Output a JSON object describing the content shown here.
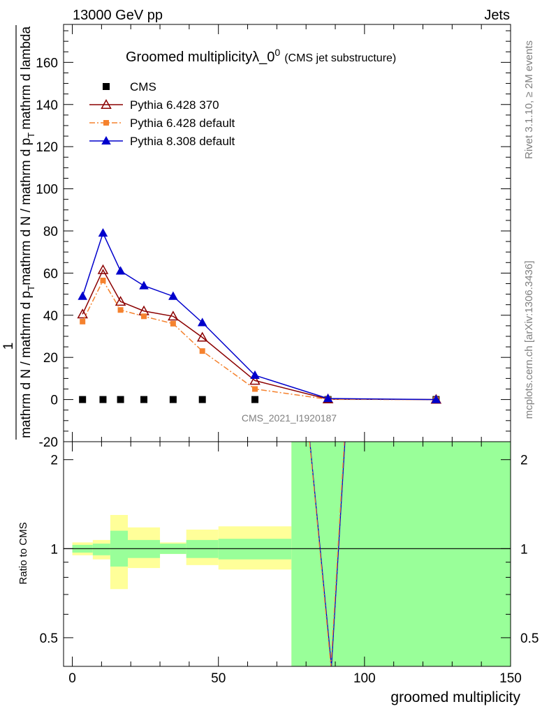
{
  "header": {
    "energy_label": "13000 GeV pp",
    "category_label": "Jets",
    "right_top": "Rivet 3.1.10, ≥ 2M events",
    "right_bottom": "mcplots.cern.ch [arXiv:1306.3436]",
    "watermark": "CMS_2021_I1920187"
  },
  "colors": {
    "data": "#000000",
    "pythia6_370": "#8b0000",
    "pythia6_default": "#f5822e",
    "pythia8": "#0000cc",
    "band_inner": "#99ff99",
    "band_outer": "#ffff99"
  },
  "chart_data": [
    {
      "type": "line",
      "title": "Groomed multiplicityλ_0",
      "title_superscript": "0",
      "title_suffix": "(CMS jet substructure)",
      "ylabel_num": "1",
      "ylabel_den": "mathrm d N / mathrm d p",
      "ylabel_rest": "mathrm d lambda",
      "ylim": [
        -20,
        178
      ],
      "yticks": [
        -20,
        0,
        20,
        40,
        60,
        80,
        100,
        120,
        140,
        160
      ],
      "xlim": [
        -3,
        150
      ],
      "legend_position": "top-left",
      "series": [
        {
          "name": "CMS",
          "marker": "square",
          "x": [
            3.5,
            10.5,
            16.5,
            24.5,
            34.5,
            44.5,
            62.5,
            87.5,
            124.5
          ],
          "values": [
            0,
            0,
            0,
            0,
            0,
            0,
            0,
            0,
            0
          ]
        },
        {
          "name": "Pythia 6.428 370",
          "marker": "open-triangle",
          "x": [
            3.5,
            10.5,
            16.5,
            24.5,
            34.5,
            44.5,
            62.5,
            87.5,
            124.5
          ],
          "values": [
            40.5,
            61.5,
            46.5,
            42,
            39.5,
            29.5,
            9,
            0.2,
            0
          ]
        },
        {
          "name": "Pythia 6.428 default",
          "marker": "square-small",
          "x": [
            3.5,
            10.5,
            16.5,
            24.5,
            34.5,
            44.5,
            62.5,
            87.5,
            124.5
          ],
          "values": [
            37,
            56.5,
            42.5,
            39.5,
            36,
            23,
            5,
            0.1,
            0
          ]
        },
        {
          "name": "Pythia 8.308 default",
          "marker": "triangle",
          "x": [
            3.5,
            10.5,
            16.5,
            24.5,
            34.5,
            44.5,
            62.5,
            87.5,
            124.5
          ],
          "values": [
            49,
            79,
            61,
            54,
            49,
            36.5,
            11.5,
            0.5,
            0
          ]
        }
      ]
    },
    {
      "type": "area",
      "ylabel": "Ratio to CMS",
      "xlabel": "groomed multiplicity",
      "ylim": [
        0.4,
        2.3
      ],
      "yticks": [
        0.5,
        1,
        2
      ],
      "xticks": [
        0,
        50,
        100,
        150
      ],
      "xlim": [
        -3,
        150
      ],
      "bins": [
        {
          "x": [
            0,
            7
          ],
          "inner": [
            0.97,
            1.03
          ],
          "outer": [
            0.95,
            1.05
          ]
        },
        {
          "x": [
            7,
            13
          ],
          "inner": [
            0.95,
            1.04
          ],
          "outer": [
            0.92,
            1.07
          ]
        },
        {
          "x": [
            13,
            19
          ],
          "inner": [
            0.87,
            1.15
          ],
          "outer": [
            0.73,
            1.3
          ]
        },
        {
          "x": [
            19,
            30
          ],
          "inner": [
            0.93,
            1.07
          ],
          "outer": [
            0.86,
            1.18
          ]
        },
        {
          "x": [
            30,
            39
          ],
          "inner": [
            0.96,
            1.04
          ],
          "outer": [
            0.96,
            1.05
          ]
        },
        {
          "x": [
            39,
            50
          ],
          "inner": [
            0.93,
            1.07
          ],
          "outer": [
            0.88,
            1.16
          ]
        },
        {
          "x": [
            50,
            75
          ],
          "inner": [
            0.92,
            1.08
          ],
          "outer": [
            0.85,
            1.19
          ]
        },
        {
          "x": [
            75,
            150
          ],
          "inner": [
            0.4,
            2.3
          ],
          "outer": [
            0.4,
            2.3
          ]
        }
      ],
      "ratio_lines": [
        {
          "name": "Pythia 8.308 default",
          "x": [
            81.3,
            88.7,
            93.3
          ],
          "values": [
            2.3,
            0.4,
            2.3
          ]
        },
        {
          "name": "Pythia 6.428 default",
          "x": [
            81.2,
            88.5,
            93.1
          ],
          "values": [
            2.3,
            0.4,
            2.3
          ]
        }
      ]
    }
  ]
}
